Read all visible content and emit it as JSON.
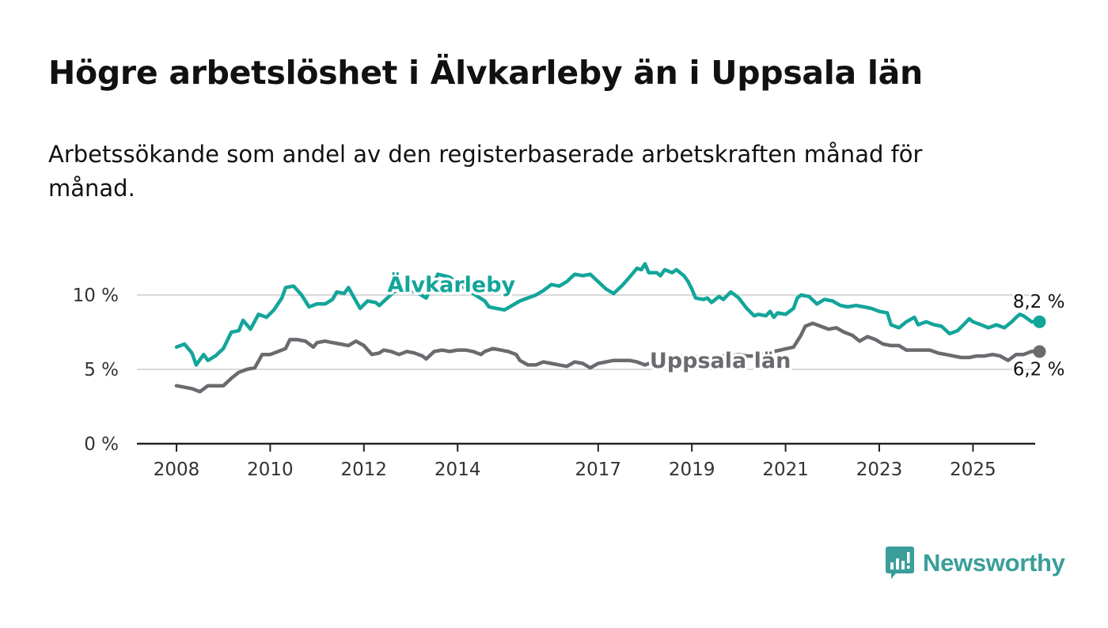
{
  "header": {
    "title": "Högre arbetslöshet i Älvkarleby än i Uppsala län",
    "subtitle": "Arbetssökande som andel av den registerbaserade arbetskraften månad för månad."
  },
  "logo": {
    "text": "Newsworthy",
    "icon": "bar-chart-speech-bubble-icon",
    "color": "#3a9e9a"
  },
  "chart_data": {
    "type": "line",
    "title": "Högre arbetslöshet i Älvkarleby än i Uppsala län",
    "subtitle": "Arbetssökande som andel av den registerbaserade arbetskraften månad för månad.",
    "xlabel": "",
    "ylabel": "",
    "x_range": [
      2007.5,
      2026.4
    ],
    "ylim": [
      0,
      10
    ],
    "y_ticks": [
      0,
      5,
      10
    ],
    "y_tick_labels": [
      "0 %",
      "5 %",
      "10 %"
    ],
    "x_ticks": [
      2008,
      2010,
      2012,
      2014,
      2017,
      2019,
      2021,
      2023,
      2025
    ],
    "x_tick_labels": [
      "2008",
      "2010",
      "2012",
      "2014",
      "2017",
      "2019",
      "2021",
      "2023",
      "2025"
    ],
    "grid": "horizontal",
    "legend": "inline labels on lines",
    "series": [
      {
        "name": "Älvkarleby",
        "color": "#13a59a",
        "end_label": "8,2 %",
        "points": [
          [
            2008.0,
            6.5
          ],
          [
            2008.17,
            6.7
          ],
          [
            2008.33,
            6.1
          ],
          [
            2008.42,
            5.3
          ],
          [
            2008.58,
            6.0
          ],
          [
            2008.67,
            5.6
          ],
          [
            2008.83,
            5.9
          ],
          [
            2009.0,
            6.4
          ],
          [
            2009.17,
            7.5
          ],
          [
            2009.33,
            7.6
          ],
          [
            2009.42,
            8.3
          ],
          [
            2009.58,
            7.7
          ],
          [
            2009.75,
            8.7
          ],
          [
            2009.92,
            8.5
          ],
          [
            2010.08,
            9.0
          ],
          [
            2010.25,
            9.8
          ],
          [
            2010.33,
            10.5
          ],
          [
            2010.5,
            10.6
          ],
          [
            2010.67,
            10.0
          ],
          [
            2010.83,
            9.2
          ],
          [
            2011.0,
            9.4
          ],
          [
            2011.17,
            9.4
          ],
          [
            2011.33,
            9.7
          ],
          [
            2011.42,
            10.2
          ],
          [
            2011.58,
            10.1
          ],
          [
            2011.67,
            10.5
          ],
          [
            2011.83,
            9.6
          ],
          [
            2011.92,
            9.1
          ],
          [
            2012.08,
            9.6
          ],
          [
            2012.25,
            9.5
          ],
          [
            2012.33,
            9.3
          ],
          [
            2012.5,
            9.8
          ],
          [
            2012.67,
            10.3
          ],
          [
            2012.83,
            10.2
          ],
          [
            2013.0,
            10.3
          ],
          [
            2013.17,
            10.1
          ],
          [
            2013.33,
            9.8
          ],
          [
            2013.58,
            11.4
          ],
          [
            2013.83,
            11.2
          ],
          [
            2014.0,
            10.8
          ],
          [
            2014.17,
            10.4
          ],
          [
            2014.33,
            10.1
          ],
          [
            2014.58,
            9.6
          ],
          [
            2014.67,
            9.2
          ],
          [
            2014.83,
            9.1
          ],
          [
            2015.0,
            9.0
          ],
          [
            2015.33,
            9.6
          ],
          [
            2015.67,
            10.0
          ],
          [
            2015.83,
            10.3
          ],
          [
            2016.0,
            10.7
          ],
          [
            2016.17,
            10.6
          ],
          [
            2016.33,
            10.9
          ],
          [
            2016.5,
            11.4
          ],
          [
            2016.67,
            11.3
          ],
          [
            2016.83,
            11.4
          ],
          [
            2017.0,
            10.9
          ],
          [
            2017.17,
            10.4
          ],
          [
            2017.33,
            10.1
          ],
          [
            2017.5,
            10.6
          ],
          [
            2017.67,
            11.2
          ],
          [
            2017.83,
            11.8
          ],
          [
            2017.92,
            11.7
          ],
          [
            2018.0,
            12.1
          ],
          [
            2018.08,
            11.5
          ],
          [
            2018.25,
            11.5
          ],
          [
            2018.33,
            11.3
          ],
          [
            2018.42,
            11.7
          ],
          [
            2018.58,
            11.5
          ],
          [
            2018.67,
            11.7
          ],
          [
            2018.83,
            11.3
          ],
          [
            2018.92,
            10.9
          ],
          [
            2019.0,
            10.4
          ],
          [
            2019.08,
            9.8
          ],
          [
            2019.25,
            9.7
          ],
          [
            2019.33,
            9.8
          ],
          [
            2019.42,
            9.5
          ],
          [
            2019.58,
            9.9
          ],
          [
            2019.67,
            9.7
          ],
          [
            2019.83,
            10.2
          ],
          [
            2019.92,
            10.0
          ],
          [
            2020.0,
            9.8
          ],
          [
            2020.17,
            9.1
          ],
          [
            2020.33,
            8.6
          ],
          [
            2020.42,
            8.7
          ],
          [
            2020.58,
            8.6
          ],
          [
            2020.67,
            8.9
          ],
          [
            2020.75,
            8.5
          ],
          [
            2020.83,
            8.8
          ],
          [
            2021.0,
            8.7
          ],
          [
            2021.17,
            9.1
          ],
          [
            2021.25,
            9.8
          ],
          [
            2021.33,
            10.0
          ],
          [
            2021.5,
            9.9
          ],
          [
            2021.67,
            9.4
          ],
          [
            2021.83,
            9.7
          ],
          [
            2022.0,
            9.6
          ],
          [
            2022.17,
            9.3
          ],
          [
            2022.33,
            9.2
          ],
          [
            2022.5,
            9.3
          ],
          [
            2022.67,
            9.2
          ],
          [
            2022.83,
            9.1
          ],
          [
            2023.0,
            8.9
          ],
          [
            2023.17,
            8.8
          ],
          [
            2023.25,
            8.0
          ],
          [
            2023.42,
            7.8
          ],
          [
            2023.58,
            8.2
          ],
          [
            2023.75,
            8.5
          ],
          [
            2023.83,
            8.0
          ],
          [
            2024.0,
            8.2
          ],
          [
            2024.17,
            8.0
          ],
          [
            2024.33,
            7.9
          ],
          [
            2024.5,
            7.4
          ],
          [
            2024.67,
            7.6
          ],
          [
            2024.83,
            8.1
          ],
          [
            2024.92,
            8.4
          ],
          [
            2025.0,
            8.2
          ],
          [
            2025.17,
            8.0
          ],
          [
            2025.33,
            7.8
          ],
          [
            2025.5,
            8.0
          ],
          [
            2025.67,
            7.8
          ],
          [
            2025.83,
            8.2
          ],
          [
            2025.92,
            8.5
          ],
          [
            2026.0,
            8.7
          ],
          [
            2026.08,
            8.6
          ],
          [
            2026.25,
            8.2
          ],
          [
            2026.42,
            8.2
          ]
        ]
      },
      {
        "name": "Uppsala län",
        "color": "#6b6a6f",
        "end_label": "6,2 %",
        "points": [
          [
            2008.0,
            3.9
          ],
          [
            2008.17,
            3.8
          ],
          [
            2008.33,
            3.7
          ],
          [
            2008.5,
            3.5
          ],
          [
            2008.67,
            3.9
          ],
          [
            2008.83,
            3.9
          ],
          [
            2009.0,
            3.9
          ],
          [
            2009.17,
            4.4
          ],
          [
            2009.33,
            4.8
          ],
          [
            2009.5,
            5.0
          ],
          [
            2009.67,
            5.1
          ],
          [
            2009.83,
            6.0
          ],
          [
            2010.0,
            6.0
          ],
          [
            2010.17,
            6.2
          ],
          [
            2010.33,
            6.4
          ],
          [
            2010.42,
            7.0
          ],
          [
            2010.58,
            7.0
          ],
          [
            2010.75,
            6.9
          ],
          [
            2010.92,
            6.5
          ],
          [
            2011.0,
            6.8
          ],
          [
            2011.17,
            6.9
          ],
          [
            2011.33,
            6.8
          ],
          [
            2011.5,
            6.7
          ],
          [
            2011.67,
            6.6
          ],
          [
            2011.83,
            6.9
          ],
          [
            2012.0,
            6.6
          ],
          [
            2012.17,
            6.0
          ],
          [
            2012.33,
            6.1
          ],
          [
            2012.42,
            6.3
          ],
          [
            2012.58,
            6.2
          ],
          [
            2012.75,
            6.0
          ],
          [
            2012.92,
            6.2
          ],
          [
            2013.08,
            6.1
          ],
          [
            2013.25,
            5.9
          ],
          [
            2013.33,
            5.7
          ],
          [
            2013.5,
            6.2
          ],
          [
            2013.67,
            6.3
          ],
          [
            2013.83,
            6.2
          ],
          [
            2014.0,
            6.3
          ],
          [
            2014.17,
            6.3
          ],
          [
            2014.33,
            6.2
          ],
          [
            2014.5,
            6.0
          ],
          [
            2014.58,
            6.2
          ],
          [
            2014.75,
            6.4
          ],
          [
            2014.92,
            6.3
          ],
          [
            2015.08,
            6.2
          ],
          [
            2015.25,
            6.0
          ],
          [
            2015.33,
            5.6
          ],
          [
            2015.5,
            5.3
          ],
          [
            2015.67,
            5.3
          ],
          [
            2015.83,
            5.5
          ],
          [
            2016.0,
            5.4
          ],
          [
            2016.17,
            5.3
          ],
          [
            2016.33,
            5.2
          ],
          [
            2016.5,
            5.5
          ],
          [
            2016.67,
            5.4
          ],
          [
            2016.83,
            5.1
          ],
          [
            2017.0,
            5.4
          ],
          [
            2017.17,
            5.5
          ],
          [
            2017.33,
            5.6
          ],
          [
            2017.5,
            5.6
          ],
          [
            2017.67,
            5.6
          ],
          [
            2017.83,
            5.5
          ],
          [
            2018.0,
            5.3
          ],
          [
            2018.17,
            5.5
          ],
          [
            2018.33,
            5.6
          ],
          [
            2018.5,
            5.7
          ],
          [
            2018.67,
            5.8
          ],
          [
            2018.83,
            5.9
          ],
          [
            2019.0,
            5.9
          ],
          [
            2019.17,
            5.8
          ],
          [
            2019.33,
            5.7
          ],
          [
            2019.5,
            5.9
          ],
          [
            2019.67,
            5.9
          ],
          [
            2019.83,
            5.9
          ],
          [
            2020.0,
            6.0
          ],
          [
            2020.17,
            5.9
          ],
          [
            2020.33,
            5.9
          ],
          [
            2021.17,
            6.5
          ],
          [
            2021.33,
            7.3
          ],
          [
            2021.42,
            7.9
          ],
          [
            2021.58,
            8.1
          ],
          [
            2021.75,
            7.9
          ],
          [
            2021.92,
            7.7
          ],
          [
            2022.08,
            7.8
          ],
          [
            2022.25,
            7.5
          ],
          [
            2022.42,
            7.3
          ],
          [
            2022.58,
            6.9
          ],
          [
            2022.75,
            7.2
          ],
          [
            2022.92,
            7.0
          ],
          [
            2023.08,
            6.7
          ],
          [
            2023.25,
            6.6
          ],
          [
            2023.42,
            6.6
          ],
          [
            2023.58,
            6.3
          ],
          [
            2023.75,
            6.3
          ],
          [
            2023.92,
            6.3
          ],
          [
            2024.08,
            6.3
          ],
          [
            2024.25,
            6.1
          ],
          [
            2024.42,
            6.0
          ],
          [
            2024.58,
            5.9
          ],
          [
            2024.75,
            5.8
          ],
          [
            2024.92,
            5.8
          ],
          [
            2025.08,
            5.9
          ],
          [
            2025.25,
            5.9
          ],
          [
            2025.42,
            6.0
          ],
          [
            2025.58,
            5.9
          ],
          [
            2025.75,
            5.6
          ],
          [
            2025.92,
            6.0
          ],
          [
            2026.08,
            6.0
          ],
          [
            2026.25,
            6.2
          ],
          [
            2026.42,
            6.2
          ]
        ]
      }
    ]
  }
}
